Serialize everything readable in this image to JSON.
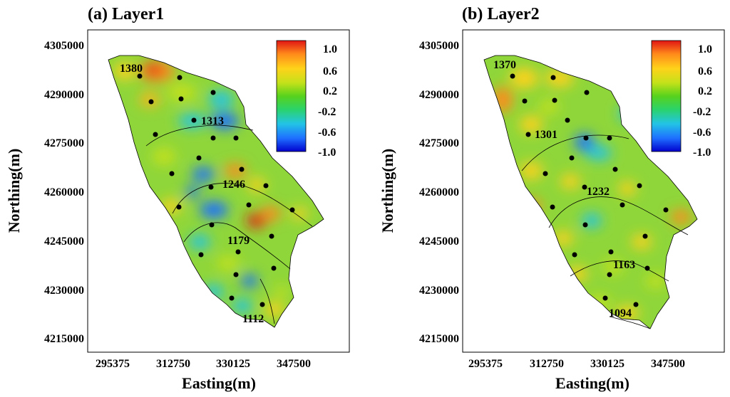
{
  "panels": [
    {
      "title": "(a) Layer1",
      "contour_labels": [
        "1380",
        "1313",
        "1246",
        "1179",
        "1112"
      ]
    },
    {
      "title": "(b) Layer2",
      "contour_labels": [
        "1370",
        "1301",
        "1232",
        "1163",
        "1094"
      ]
    }
  ],
  "axes": {
    "xlabel": "Easting(m)",
    "ylabel": "Northing(m)",
    "x_ticks": [
      "295375",
      "312750",
      "330125",
      "347500"
    ],
    "y_ticks": [
      "4305000",
      "4290000",
      "4275000",
      "4260000",
      "4245000",
      "4230000",
      "4215000"
    ]
  },
  "colorbar": {
    "tick_labels": [
      "1.0",
      "0.6",
      "0.2",
      "-0.2",
      "-0.6",
      "-1.0"
    ],
    "range": [
      -1.0,
      1.0
    ],
    "colormap": [
      "#0000cc",
      "#1e6fff",
      "#22c4e6",
      "#2bd36a",
      "#58d21c",
      "#c4e11a",
      "#ffd21a",
      "#ff8a1a",
      "#e01414"
    ]
  },
  "colors": {
    "map_base": "#8fd63a",
    "boundary": "#000000",
    "well_marker": "#000000"
  }
}
